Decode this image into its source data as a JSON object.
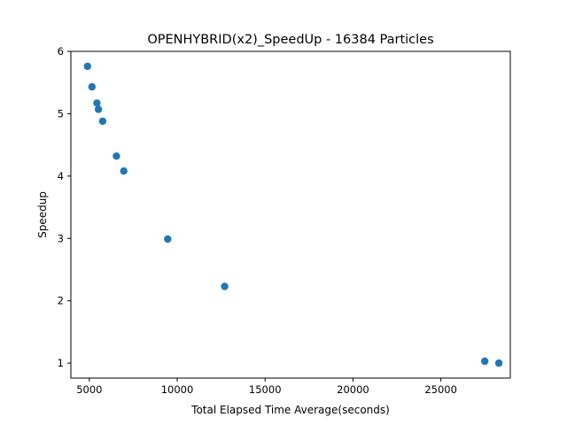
{
  "chart_data": {
    "type": "scatter",
    "title": "OPENHYBRID(x2)_SpeedUp - 16384 Particles",
    "xlabel": "Total Elapsed Time Average(seconds)",
    "ylabel": "Speedup",
    "xlim": [
      3950,
      28950
    ],
    "ylim": [
      0.76,
      6.0
    ],
    "xticks": [
      5000,
      10000,
      15000,
      20000,
      25000
    ],
    "yticks": [
      1,
      2,
      3,
      4,
      5,
      6
    ],
    "grid": false,
    "marker_color": "#1f77b4",
    "points": [
      {
        "x": 4900,
        "y": 5.76
      },
      {
        "x": 5150,
        "y": 5.43
      },
      {
        "x": 5430,
        "y": 5.17
      },
      {
        "x": 5520,
        "y": 5.07
      },
      {
        "x": 5760,
        "y": 4.88
      },
      {
        "x": 6540,
        "y": 4.32
      },
      {
        "x": 6960,
        "y": 4.08
      },
      {
        "x": 9460,
        "y": 2.99
      },
      {
        "x": 12700,
        "y": 2.23
      },
      {
        "x": 27500,
        "y": 1.03
      },
      {
        "x": 28300,
        "y": 1.0
      }
    ]
  }
}
